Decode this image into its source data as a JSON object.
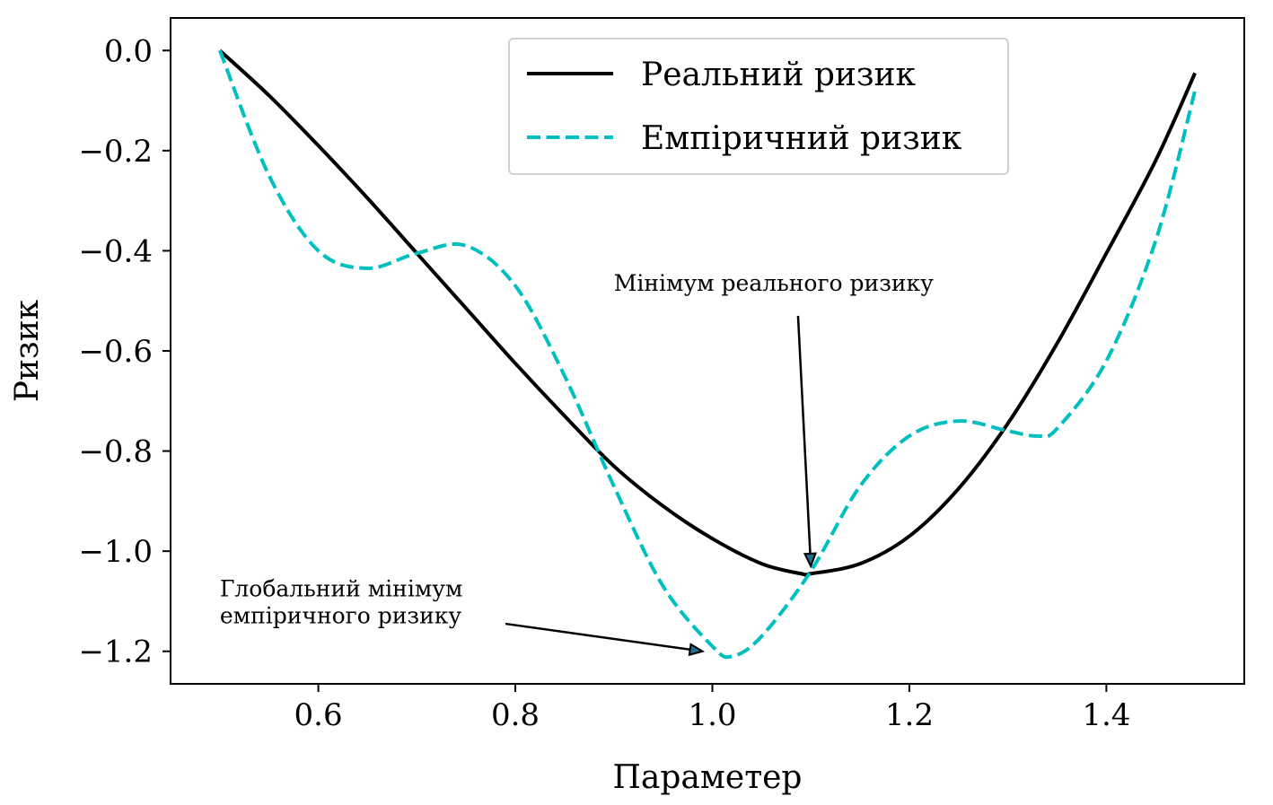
{
  "chart_data": {
    "type": "line",
    "title": "",
    "xlabel": "Параметер",
    "ylabel": "Ризик",
    "xlim": [
      0.45,
      1.54
    ],
    "ylim": [
      -1.265,
      0.065
    ],
    "x_ticks": [
      0.6,
      0.8,
      1.0,
      1.2,
      1.4
    ],
    "x_tick_labels": [
      "0.6",
      "0.8",
      "1.0",
      "1.2",
      "1.4"
    ],
    "y_ticks": [
      0.0,
      -0.2,
      -0.4,
      -0.6,
      -0.8,
      -1.0,
      -1.2
    ],
    "y_tick_labels": [
      "0.0",
      "−0.2",
      "−0.4",
      "−0.6",
      "−0.8",
      "−1.0",
      "−1.2"
    ],
    "grid": false,
    "legend_position": "top-center",
    "series": [
      {
        "name": "Реальний ризик",
        "color": "#000000",
        "style": "solid",
        "x": [
          0.5,
          0.55,
          0.6,
          0.65,
          0.7,
          0.75,
          0.8,
          0.85,
          0.9,
          0.95,
          1.0,
          1.05,
          1.09,
          1.1,
          1.15,
          1.2,
          1.25,
          1.3,
          1.35,
          1.4,
          1.45,
          1.49
        ],
        "values": [
          0.0,
          -0.09,
          -0.19,
          -0.295,
          -0.405,
          -0.515,
          -0.625,
          -0.73,
          -0.83,
          -0.91,
          -0.975,
          -1.025,
          -1.045,
          -1.045,
          -1.025,
          -0.97,
          -0.875,
          -0.745,
          -0.585,
          -0.405,
          -0.22,
          -0.045
        ]
      },
      {
        "name": "Емпіричний ризик",
        "color": "#00bfbf",
        "style": "dashed",
        "x": [
          0.5,
          0.55,
          0.6,
          0.65,
          0.7,
          0.75,
          0.8,
          0.85,
          0.9,
          0.95,
          1.0,
          1.02,
          1.05,
          1.1,
          1.15,
          1.2,
          1.25,
          1.3,
          1.33,
          1.35,
          1.4,
          1.45,
          1.49
        ],
        "values": [
          0.0,
          -0.25,
          -0.4,
          -0.435,
          -0.405,
          -0.39,
          -0.47,
          -0.65,
          -0.87,
          -1.07,
          -1.19,
          -1.21,
          -1.17,
          -1.04,
          -0.87,
          -0.77,
          -0.74,
          -0.76,
          -0.77,
          -0.755,
          -0.62,
          -0.38,
          -0.08
        ]
      }
    ],
    "annotations": [
      {
        "lines": [
          "Мінімум реального ризику"
        ],
        "text_x": 0.9,
        "text_y": -0.48,
        "tail_x": 1.087,
        "tail_y": -0.53,
        "point_x": 1.1,
        "point_y": -1.03
      },
      {
        "lines": [
          "Глобальний мінімум",
          "емпіричного ризику"
        ],
        "text_x": 0.5,
        "text_y": -1.09,
        "tail_x": 0.79,
        "tail_y": -1.145,
        "point_x": 0.99,
        "point_y": -1.2
      }
    ]
  }
}
